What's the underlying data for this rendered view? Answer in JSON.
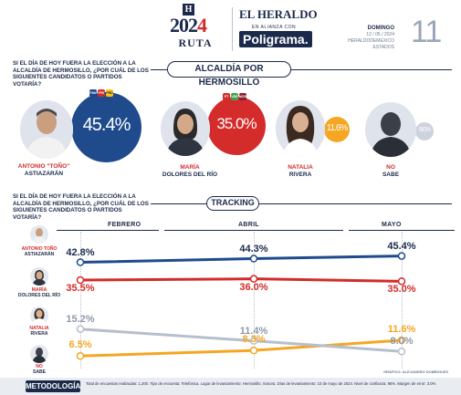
{
  "header": {
    "logo_letter": "H",
    "logo_year_a": "202",
    "logo_year_b": "4",
    "logo_ruta": "RUTA",
    "heraldo": "EL HERALDO",
    "alianza": "EN ALIANZA CON",
    "poligrama": "Poligrama.",
    "day": "DOMINGO",
    "date": "12 / 05 / 2024",
    "edition": "HERALDODEMEXICO",
    "section": "ESTADOS",
    "page_number": "11"
  },
  "section1": {
    "question": "SI EL DÍA DE HOY FUERA LA ELECCIÓN A LA ALCALDÍA DE HERMOSILLO, ¿POR CUÁL DE LOS SIGUIENTES CANDIDATOS O PARTIDOS VOTARÍA?",
    "title": "ALCALDÍA POR HERMOSILLO",
    "candidates": [
      {
        "first": "ANTONIO \"TOÑO\"",
        "last": "ASTIAZARÁN",
        "pct": "45.4%",
        "color": "#1f4b8c"
      },
      {
        "first": "MARÍA",
        "last": "DOLORES DEL RÍO",
        "pct": "35.0%",
        "color": "#d42b2b"
      },
      {
        "first": "NATALIA",
        "last": "RIVERA",
        "pct": "11.6%",
        "color": "#f5a623"
      },
      {
        "first": "NO",
        "last": "SABE",
        "pct": "8.0%",
        "color": "#cdd3dc"
      }
    ],
    "parties_a": [
      "PAN",
      "PRI",
      "PRD"
    ],
    "parties_b": [
      "PT",
      "VDE",
      "MOR"
    ]
  },
  "section2": {
    "question": "SI EL DÍA DE HOY FUERA LA ELECCIÓN A LA ALCALDÍA DE HERMOSILLO, ¿POR CUÁL DE LOS SIGUIENTES CANDIDATOS O PARTIDOS VOTARÍA?",
    "title": "TRACKING",
    "months": [
      "FEBRERO",
      "ABRIL",
      "MAYO"
    ],
    "people": [
      {
        "first": "ANTONIO TOÑO",
        "last": "ASTIAZARÁN"
      },
      {
        "first": "MARÍA",
        "last": "DOLORES DEL RÍO"
      },
      {
        "first": "NATALIA",
        "last": "RIVERA"
      },
      {
        "first": "NO",
        "last": "SABE"
      }
    ],
    "source": "GRÁFICO: ALEJANDRO DOMÍNGUEZ"
  },
  "chart_data": {
    "type": "line",
    "x": [
      "FEBRERO",
      "ABRIL",
      "MAYO"
    ],
    "series": [
      {
        "name": "ASTIAZARÁN",
        "values": [
          42.8,
          44.3,
          45.4
        ],
        "labels": [
          "42.8%",
          "44.3%",
          "45.4%"
        ],
        "color": "#1f4b8c"
      },
      {
        "name": "DOLORES DEL RÍO",
        "values": [
          35.5,
          36.0,
          35.0
        ],
        "labels": [
          "35.5%",
          "36.0%",
          "35.0%"
        ],
        "color": "#d42b2b"
      },
      {
        "name": "RIVERA",
        "values": [
          6.5,
          8.3,
          11.6
        ],
        "labels": [
          "6.5%",
          "8.3%",
          "11.6%"
        ],
        "color": "#f5a623"
      },
      {
        "name": "NO SABE",
        "values": [
          15.2,
          11.4,
          8.0
        ],
        "labels": [
          "15.2%",
          "11.4%",
          "8.0%"
        ],
        "color": "#b6bfcc"
      }
    ]
  },
  "footer": {
    "tag": "METODOLOGÍA",
    "text": "Total de encuestas realizadas: 1,200. Tipo de encuesta: Telefónica. Lugar de levantamiento: Hermosillo, Sonora. Días de levantamiento: 10 de mayo de 2024. Nivel de confianza: 95%. Margen de error: 3.0%"
  }
}
